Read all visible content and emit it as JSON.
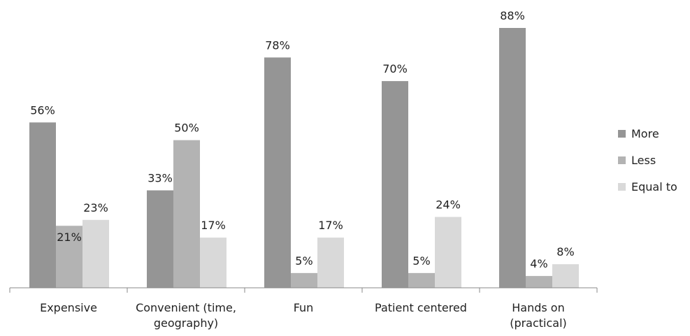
{
  "chart_data": {
    "type": "bar",
    "categories": [
      [
        "Expensive"
      ],
      [
        "Convenient (time,",
        "geography)"
      ],
      [
        "Fun"
      ],
      [
        "Patient centered"
      ],
      [
        "Hands on",
        "(practical)"
      ]
    ],
    "series": [
      {
        "name": "More",
        "values": [
          56,
          33,
          78,
          70,
          88
        ],
        "labels": [
          "56%",
          "33%",
          "78%",
          "70%",
          "88%"
        ],
        "color": "#959595"
      },
      {
        "name": "Less",
        "values": [
          21,
          50,
          5,
          5,
          4
        ],
        "labels": [
          "21%",
          "50%",
          "5%",
          "5%",
          "4%"
        ],
        "color": "#b3b3b3"
      },
      {
        "name": "Equal to",
        "values": [
          23,
          17,
          17,
          24,
          8
        ],
        "labels": [
          "23%",
          "17%",
          "17%",
          "24%",
          "8%"
        ],
        "color": "#d9d9d9"
      }
    ],
    "ylim": [
      0,
      100
    ],
    "legend_position": "right",
    "grid": false
  }
}
